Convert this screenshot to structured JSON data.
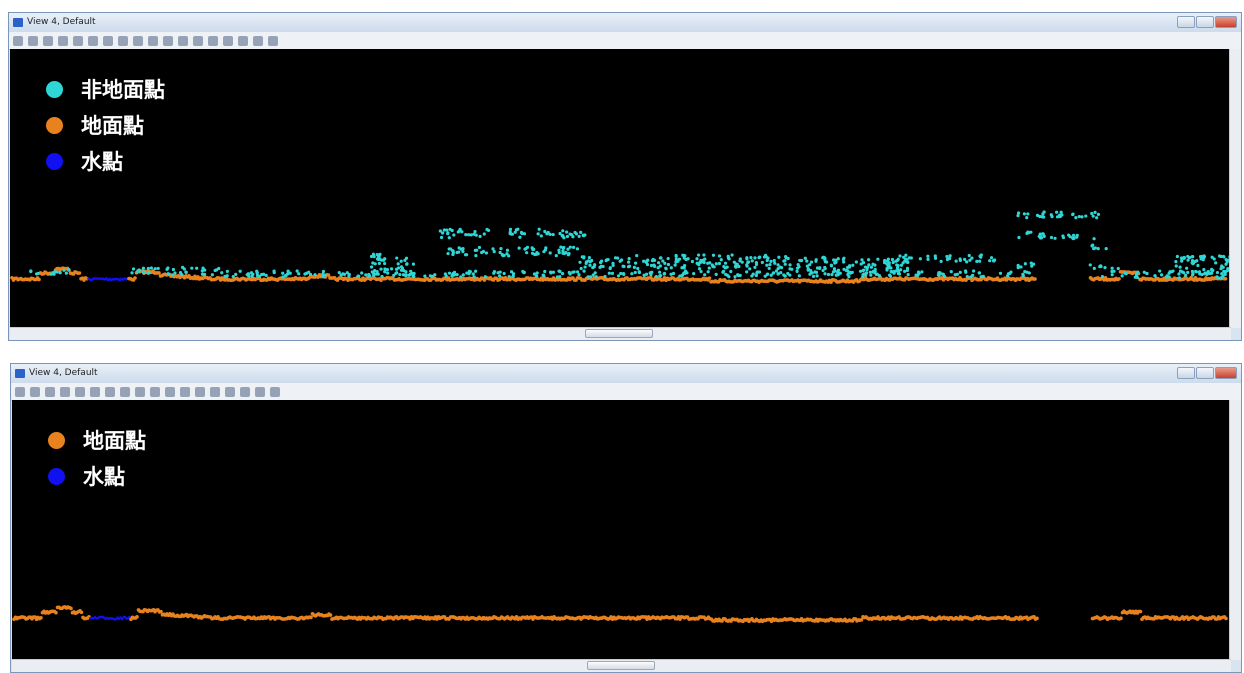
{
  "windows": [
    {
      "title": "View 4, Default",
      "show_non_ground": true,
      "legend": [
        {
          "label": "非地面點",
          "color": "#2fd6d6"
        },
        {
          "label": "地面點",
          "color": "#e8821e"
        },
        {
          "label": "水點",
          "color": "#1010f0"
        }
      ]
    },
    {
      "title": "View 4, Default",
      "show_non_ground": false,
      "legend": [
        {
          "label": "地面點",
          "color": "#e8821e"
        },
        {
          "label": "水點",
          "color": "#1010f0"
        }
      ]
    }
  ]
}
